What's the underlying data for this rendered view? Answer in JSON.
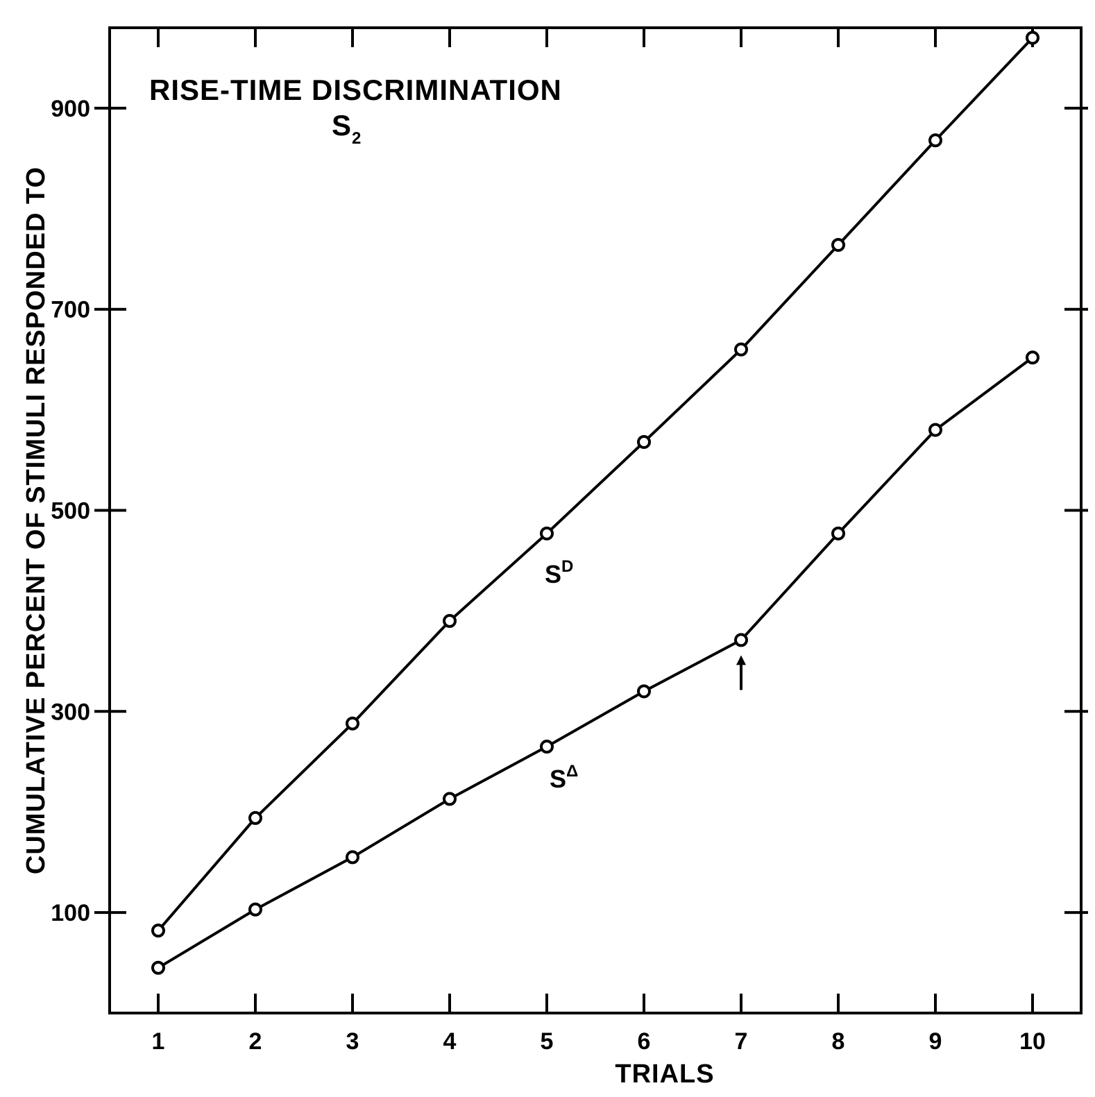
{
  "chart_data": {
    "type": "line",
    "title": "RISE-TIME DISCRIMINATION",
    "subtitle": {
      "base": "S",
      "sub": "2"
    },
    "xlabel": "TRIALS",
    "ylabel": "CUMULATIVE PERCENT OF STIMULI RESPONDED TO",
    "x": [
      1,
      2,
      3,
      4,
      5,
      6,
      7,
      8,
      9,
      10
    ],
    "xlim": [
      0.5,
      10.5
    ],
    "ylim": [
      0,
      980
    ],
    "yticks": [
      100,
      300,
      500,
      700,
      900
    ],
    "grid": false,
    "series": [
      {
        "name": {
          "base": "S",
          "sup": "D"
        },
        "values": [
          82,
          194,
          288,
          390,
          477,
          568,
          660,
          764,
          868,
          970
        ]
      },
      {
        "name": {
          "base": "S",
          "sup": "Δ"
        },
        "values": [
          45,
          103,
          155,
          213,
          265,
          320,
          371,
          477,
          580,
          652
        ]
      }
    ],
    "annotations": [
      {
        "type": "arrow",
        "x": 7,
        "y": 371,
        "direction": "up"
      }
    ]
  }
}
